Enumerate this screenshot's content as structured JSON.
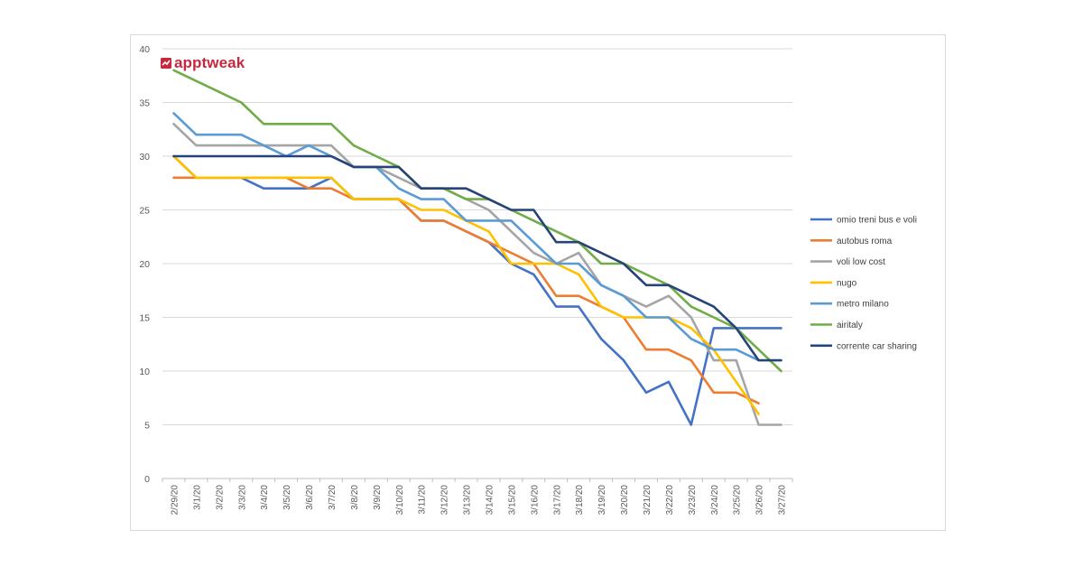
{
  "brand": {
    "name": "apptweak",
    "color": "#c8283e"
  },
  "chart_data": {
    "type": "line",
    "title": "",
    "xlabel": "",
    "ylabel": "",
    "ylim": [
      0,
      40
    ],
    "yticks": [
      0,
      5,
      10,
      15,
      20,
      25,
      30,
      35,
      40
    ],
    "grid": "horizontal",
    "legend_position": "right",
    "categories": [
      "2/29/20",
      "3/1/20",
      "3/2/20",
      "3/3/20",
      "3/4/20",
      "3/5/20",
      "3/6/20",
      "3/7/20",
      "3/8/20",
      "3/9/20",
      "3/10/20",
      "3/11/20",
      "3/12/20",
      "3/13/20",
      "3/14/20",
      "3/15/20",
      "3/16/20",
      "3/17/20",
      "3/18/20",
      "3/19/20",
      "3/20/20",
      "3/21/20",
      "3/22/20",
      "3/23/20",
      "3/24/20",
      "3/25/20",
      "3/26/20",
      "3/27/20"
    ],
    "series": [
      {
        "name": "omio treni bus e voli",
        "color": "#4472c4",
        "values": [
          30,
          28,
          28,
          28,
          27,
          27,
          27,
          28,
          26,
          26,
          26,
          24,
          24,
          23,
          22,
          20,
          19,
          16,
          16,
          13,
          11,
          8,
          9,
          5,
          14,
          14,
          14,
          14
        ]
      },
      {
        "name": "autobus roma",
        "color": "#ed7d31",
        "values": [
          28,
          28,
          28,
          28,
          28,
          28,
          27,
          27,
          26,
          26,
          26,
          24,
          24,
          23,
          22,
          21,
          20,
          17,
          17,
          16,
          15,
          12,
          12,
          11,
          8,
          8,
          7,
          null
        ]
      },
      {
        "name": "voli low cost",
        "color": "#a5a5a5",
        "values": [
          33,
          31,
          31,
          31,
          31,
          31,
          31,
          31,
          29,
          29,
          28,
          27,
          27,
          26,
          25,
          23,
          21,
          20,
          21,
          18,
          17,
          16,
          17,
          15,
          11,
          11,
          5,
          5
        ]
      },
      {
        "name": "nugo",
        "color": "#ffc000",
        "values": [
          30,
          28,
          28,
          28,
          28,
          28,
          28,
          28,
          26,
          26,
          26,
          25,
          25,
          24,
          23,
          20,
          20,
          20,
          19,
          16,
          15,
          15,
          15,
          14,
          12,
          9,
          6,
          null
        ]
      },
      {
        "name": "metro milano",
        "color": "#5b9bd5",
        "values": [
          34,
          32,
          32,
          32,
          31,
          30,
          31,
          30,
          29,
          29,
          27,
          26,
          26,
          24,
          24,
          24,
          22,
          20,
          20,
          18,
          17,
          15,
          15,
          13,
          12,
          12,
          11,
          null
        ]
      },
      {
        "name": "airitaly",
        "color": "#70ad47",
        "values": [
          38,
          37,
          36,
          35,
          33,
          33,
          33,
          33,
          31,
          30,
          29,
          27,
          27,
          26,
          26,
          25,
          24,
          23,
          22,
          20,
          20,
          19,
          18,
          16,
          15,
          14,
          12,
          10
        ]
      },
      {
        "name": "corrente car sharing",
        "color": "#264478",
        "values": [
          30,
          30,
          30,
          30,
          30,
          30,
          30,
          30,
          29,
          29,
          29,
          27,
          27,
          27,
          26,
          25,
          25,
          22,
          22,
          21,
          20,
          18,
          18,
          17,
          16,
          14,
          11,
          11
        ]
      }
    ]
  }
}
